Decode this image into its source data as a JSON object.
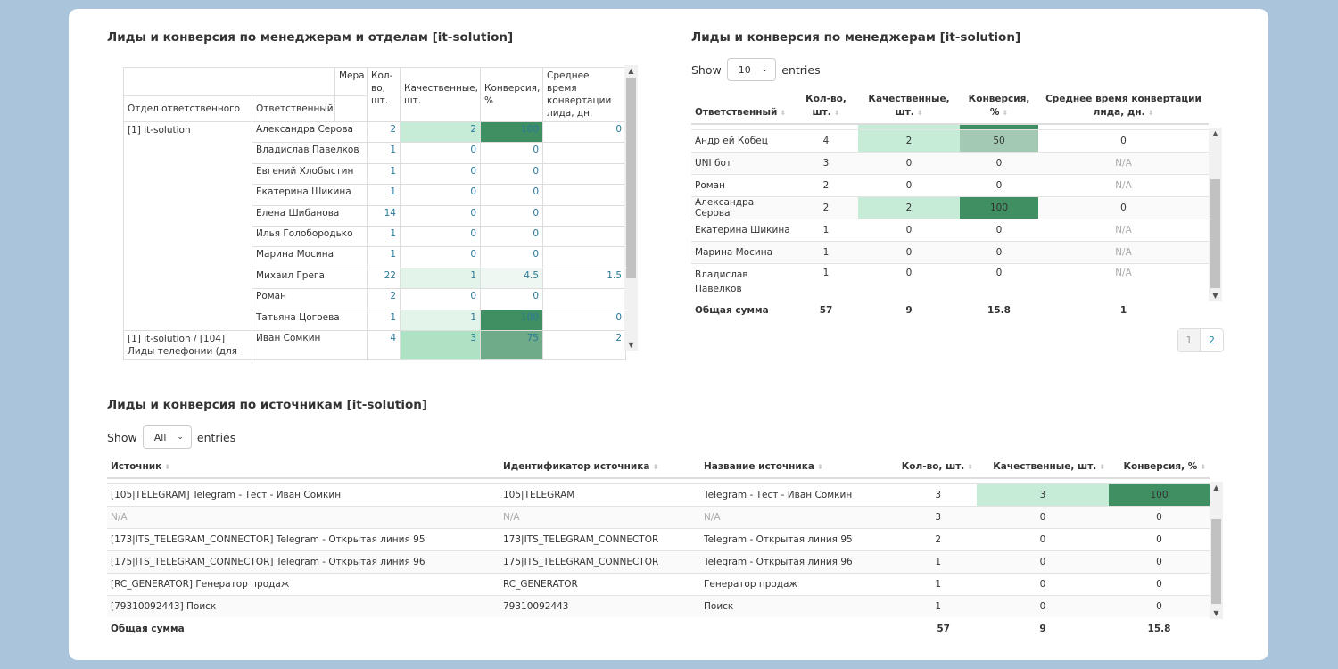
{
  "colors": {
    "background": "#aac4dc",
    "light_green": "#c6ebd6",
    "dark_green": "#3f8f63"
  },
  "pivot": {
    "title": "Лиды и конверсия по менеджерам и отделам [it-solution]",
    "headers": {
      "measure": "Мера",
      "dept": "Отдел ответственного",
      "resp": "Ответственный",
      "count": "Кол-во, шт.",
      "qual": "Качественные, шт.",
      "conv": "Конверсия, %",
      "avg": "Среднее время конвертации лида, дн."
    },
    "groups": [
      {
        "dept": "[1] it-solution",
        "rows": [
          [
            "Александра Серова",
            "2",
            "2",
            "100",
            "0"
          ],
          [
            "Владислав Павелков",
            "1",
            "0",
            "0",
            ""
          ],
          [
            "Евгений Хлобыстин",
            "1",
            "0",
            "0",
            ""
          ],
          [
            "Екатерина Шикина",
            "1",
            "0",
            "0",
            ""
          ],
          [
            "Елена Шибанова",
            "14",
            "0",
            "0",
            ""
          ],
          [
            "Илья Голобородько",
            "1",
            "0",
            "0",
            ""
          ],
          [
            "Марина Мосина",
            "1",
            "0",
            "0",
            ""
          ],
          [
            "Михаил Грега",
            "22",
            "1",
            "4.5",
            "1.5"
          ],
          [
            "Роман",
            "2",
            "0",
            "0",
            ""
          ],
          [
            "Татьяна Цогоева",
            "1",
            "1",
            "100",
            "0"
          ]
        ]
      },
      {
        "dept": "[1] it-solution / [104] Лиды телефонии (для",
        "rows": [
          [
            "Иван Сомкин",
            "4",
            "3",
            "75",
            "2"
          ]
        ]
      }
    ]
  },
  "managers": {
    "title": "Лиды и конверсия по менеджерам [it-solution]",
    "show": "Show",
    "entries": "entries",
    "page_size": "10",
    "headers": [
      "Ответственный",
      "Кол-во, шт.",
      "Качественные, шт.",
      "Конверсия, %",
      "Среднее время конвертации лида, дн."
    ],
    "rows": [
      [
        "Андр ей Кобец",
        "4",
        "2",
        "50",
        "0"
      ],
      [
        "UNI бот",
        "3",
        "0",
        "0",
        "N/A"
      ],
      [
        "Роман",
        "2",
        "0",
        "0",
        "N/A"
      ],
      [
        "Александра Серова",
        "2",
        "2",
        "100",
        "0"
      ],
      [
        "Екатерина Шикина",
        "1",
        "0",
        "0",
        "N/A"
      ],
      [
        "Марина Мосина",
        "1",
        "0",
        "0",
        "N/A"
      ],
      [
        "Владислав Павелков",
        "1",
        "0",
        "0",
        "N/A"
      ]
    ],
    "total": [
      "Общая сумма",
      "57",
      "9",
      "15.8",
      "1"
    ],
    "pages": [
      "1",
      "2"
    ]
  },
  "sources": {
    "title": "Лиды и конверсия по источникам [it-solution]",
    "show": "Show",
    "entries": "entries",
    "page_size": "All",
    "headers": [
      "Источник",
      "Идентификатор источника",
      "Название источника",
      "Кол-во, шт.",
      "Качественные, шт.",
      "Конверсия, %"
    ],
    "rows": [
      [
        "[105|TELEGRAM] Telegram - Тест - Иван Сомкин",
        "105|TELEGRAM",
        "Telegram - Тест - Иван Сомкин",
        "3",
        "3",
        "100"
      ],
      [
        "N/A",
        "N/A",
        "N/A",
        "3",
        "0",
        "0"
      ],
      [
        "[173|ITS_TELEGRAM_CONNECTOR] Telegram - Открытая линия 95",
        "173|ITS_TELEGRAM_CONNECTOR",
        "Telegram - Открытая линия 95",
        "2",
        "0",
        "0"
      ],
      [
        "[175|ITS_TELEGRAM_CONNECTOR] Telegram - Открытая линия 96",
        "175|ITS_TELEGRAM_CONNECTOR",
        "Telegram - Открытая линия 96",
        "1",
        "0",
        "0"
      ],
      [
        "[RC_GENERATOR] Генератор продаж",
        "RC_GENERATOR",
        "Генератор продаж",
        "1",
        "0",
        "0"
      ],
      [
        "[79310092443] Поиск",
        "79310092443",
        "Поиск",
        "1",
        "0",
        "0"
      ]
    ],
    "total": [
      "Общая сумма",
      "",
      "",
      "57",
      "9",
      "15.8"
    ]
  }
}
